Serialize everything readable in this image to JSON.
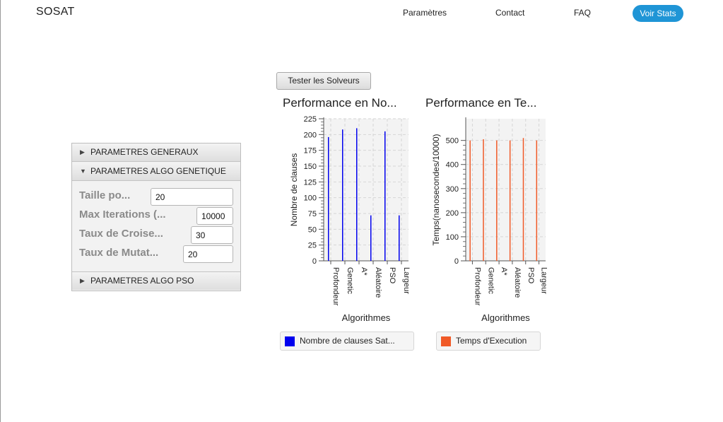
{
  "nav": {
    "brand": "SOSAT",
    "links": [
      "Paramètres",
      "Contact",
      "FAQ"
    ],
    "cta": "Voir Stats"
  },
  "actions": {
    "test_button": "Tester les Solveurs"
  },
  "accordion": {
    "sections": [
      {
        "title": "PARAMETRES GENERAUX",
        "expanded": false
      },
      {
        "title": "PARAMETRES ALGO GENETIQUE",
        "expanded": true
      },
      {
        "title": "PARAMETRES ALGO PSO",
        "expanded": false
      }
    ],
    "fields": [
      {
        "label": "Taille po...",
        "value": "20"
      },
      {
        "label": "Max Iterations (...",
        "value": "10000"
      },
      {
        "label": "Taux de Croise...",
        "value": "30"
      },
      {
        "label": "Taux de Mutat...",
        "value": "20"
      }
    ]
  },
  "chart_data": [
    {
      "type": "bar",
      "title": "Performance en No...",
      "xlabel": "Algorithmes",
      "ylabel": "Nombre de clauses",
      "categories": [
        "Profondeur",
        "Genetic",
        "A*",
        "Aléatoire",
        "PSO",
        "Largeur"
      ],
      "series": [
        {
          "name": "Nombre de clauses Sat...",
          "values": [
            196,
            208,
            210,
            72,
            205,
            72
          ],
          "color": "#0000ee"
        }
      ],
      "ylim": [
        0,
        225
      ],
      "yticks": [
        0,
        25,
        50,
        75,
        100,
        125,
        150,
        175,
        200,
        225
      ],
      "grid": true,
      "legend": "bottom"
    },
    {
      "type": "bar",
      "title": "Performance en Te...",
      "xlabel": "Algorithmes",
      "ylabel": "Temps(nanosecondes/10000)",
      "categories": [
        "Profondeur",
        "Genetic",
        "A*",
        "Aléatoire",
        "PSO",
        "Largeur"
      ],
      "series": [
        {
          "name": "Temps d'Execution",
          "values": [
            500,
            505,
            500,
            500,
            510,
            500
          ],
          "color": "#f05a28"
        }
      ],
      "ylim": [
        0,
        590
      ],
      "yticks": [
        0,
        100,
        200,
        300,
        400,
        500
      ],
      "grid": true,
      "legend": "bottom"
    }
  ]
}
